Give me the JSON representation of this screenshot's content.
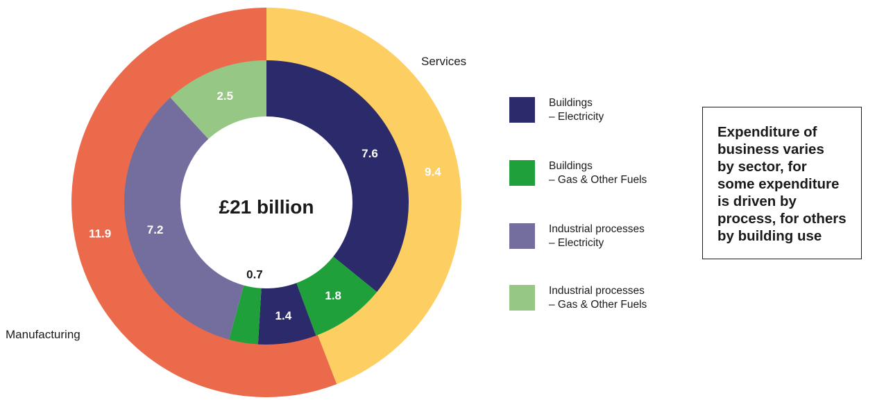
{
  "chart_data": {
    "type": "donut",
    "center_label": "£21 billion",
    "outer_ring": [
      {
        "name": "Manufacturing",
        "value": 11.9,
        "label": "11.9",
        "color": "#EC6A4C",
        "label_color": "#ffffff"
      },
      {
        "name": "Services",
        "value": 9.4,
        "label": "9.4",
        "color": "#FDCF62",
        "label_color": "#ffffff"
      }
    ],
    "inner_ring": [
      {
        "value": 7.6,
        "label": "7.6",
        "category": "Buildings – Electricity",
        "color": "#2B2A6B",
        "label_color": "#ffffff"
      },
      {
        "value": 1.8,
        "label": "1.8",
        "category": "Buildings – Gas & Other Fuels",
        "color": "#1FA03A",
        "label_color": "#ffffff"
      },
      {
        "value": 1.4,
        "label": "1.4",
        "category": "Buildings – Electricity",
        "color": "#2B2A6B",
        "label_color": "#ffffff"
      },
      {
        "value": 0.7,
        "label": "0.7",
        "category": "Buildings – Gas & Other Fuels",
        "color": "#1FA03A",
        "label_color": "#1a1a1a"
      },
      {
        "value": 7.2,
        "label": "7.2",
        "category": "Industrial processes – Electricity",
        "color": "#736E9E",
        "label_color": "#ffffff"
      },
      {
        "value": 2.5,
        "label": "2.5",
        "category": "Industrial processes – Gas & Other Fuels",
        "color": "#97C784",
        "label_color": "#ffffff"
      }
    ],
    "legend": [
      {
        "line1": "Buildings",
        "line2": "– Electricity",
        "color": "#2B2A6B"
      },
      {
        "line1": "Buildings",
        "line2": "– Gas & Other Fuels",
        "color": "#1FA03A"
      },
      {
        "line1": "Industrial processes",
        "line2": "– Electricity",
        "color": "#736E9E"
      },
      {
        "line1": "Industrial processes",
        "line2": "– Gas & Other Fuels",
        "color": "#97C784"
      }
    ]
  },
  "callout": {
    "lines": [
      "Expenditure of",
      "business varies",
      "by sector, for",
      "some expenditure",
      "is driven by",
      "process, for others",
      "by building use"
    ]
  }
}
